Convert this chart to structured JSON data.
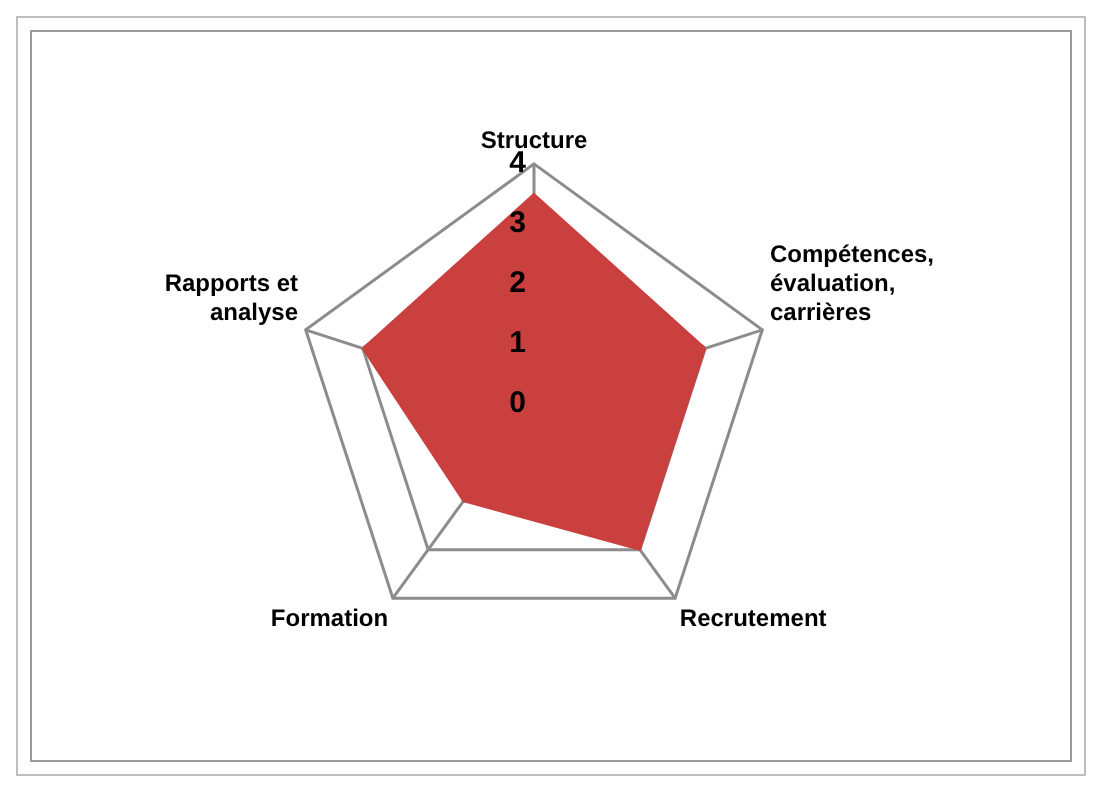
{
  "chart_data": {
    "type": "radar",
    "categories": [
      "Structure",
      "Compétences, évaluation, carrières",
      "Recrutement",
      "Formation",
      "Rapports et analyse"
    ],
    "series": [
      {
        "color": "#c9403f",
        "values": [
          3.5,
          3,
          3,
          2,
          3
        ]
      }
    ],
    "ylim": [
      0,
      4
    ],
    "yticks": [
      0,
      1,
      2,
      3,
      4
    ],
    "grid": true,
    "legend": false,
    "marker": "none"
  }
}
